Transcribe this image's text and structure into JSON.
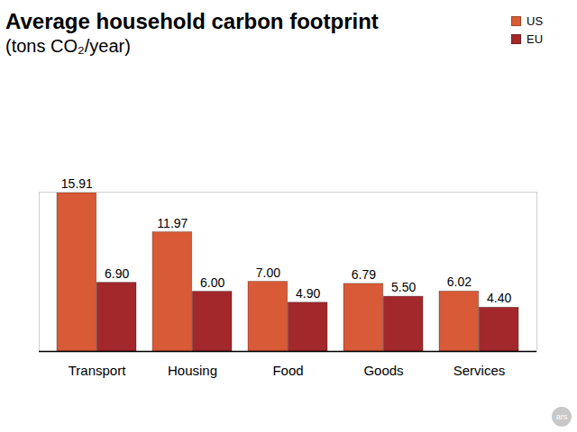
{
  "chart_data": {
    "type": "bar",
    "title": "Average household carbon footprint",
    "subtitle": "(tons CO₂/year)",
    "categories": [
      "Transport",
      "Housing",
      "Food",
      "Goods",
      "Services"
    ],
    "series": [
      {
        "name": "US",
        "color": "#d95a36",
        "values": [
          15.91,
          11.97,
          7.0,
          6.79,
          6.02
        ],
        "value_labels": [
          "15.91",
          "11.97",
          "7.00",
          "6.79",
          "6.02"
        ]
      },
      {
        "name": "EU",
        "color": "#a3282c",
        "values": [
          6.9,
          6.0,
          4.9,
          5.5,
          4.4
        ],
        "value_labels": [
          "6.90",
          "6.00",
          "4.90",
          "5.50",
          "4.40"
        ]
      }
    ],
    "ylim": [
      0,
      16
    ],
    "data_labels": true,
    "tick_labels": "x",
    "grid": false,
    "legend": "top-right",
    "annotations": [
      "ars"
    ]
  }
}
